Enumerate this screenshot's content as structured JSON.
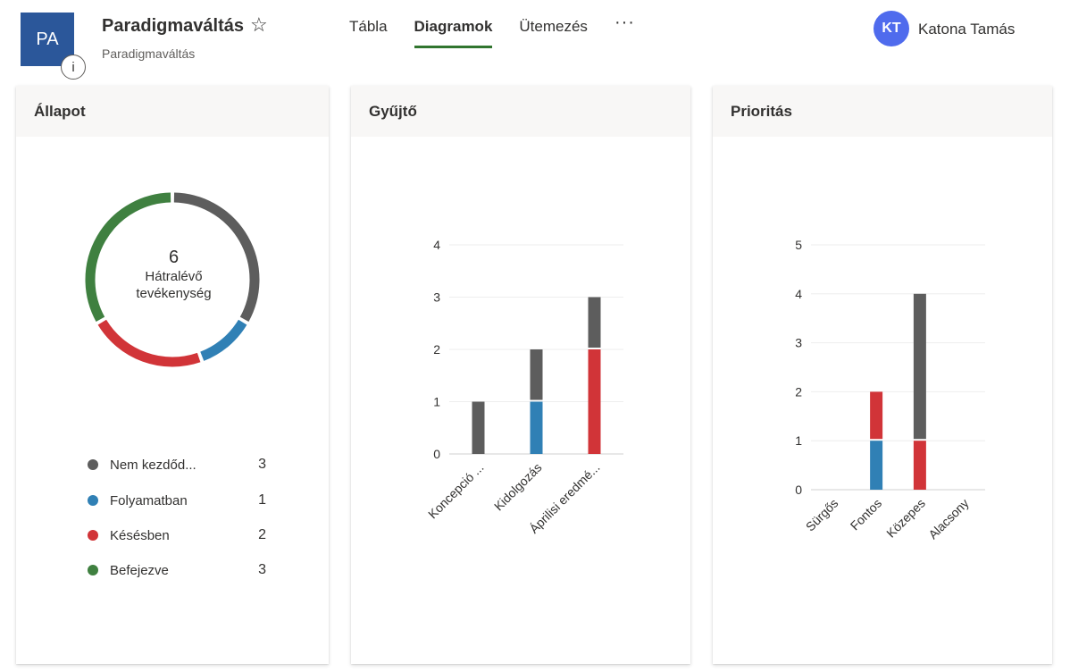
{
  "header": {
    "app_icon_text": "PA",
    "info_icon_text": "i",
    "title": "Paradigmaváltás",
    "subtitle": "Paradigmaváltás",
    "star_icon": "☆"
  },
  "nav": {
    "tabs": [
      {
        "label": "Tábla",
        "active": false
      },
      {
        "label": "Diagramok",
        "active": true
      },
      {
        "label": "Ütemezés",
        "active": false
      }
    ],
    "more_icon": "···"
  },
  "user": {
    "initials": "KT",
    "name": "Katona Tamás",
    "avatar_color": "#4f6bed"
  },
  "colors": {
    "not_started": "#5d5d5d",
    "in_progress": "#3080b5",
    "late": "#d13438",
    "completed": "#3f8040",
    "accent": "#31752f"
  },
  "status_card": {
    "title": "Állapot",
    "center_number": "6",
    "center_line1": "Hátralévő",
    "center_line2": "tevékenység",
    "legend": [
      {
        "label": "Nem kezdőd...",
        "count": "3",
        "color": "#5d5d5d"
      },
      {
        "label": "Folyamatban",
        "count": "1",
        "color": "#3080b5"
      },
      {
        "label": "Késésben",
        "count": "2",
        "color": "#d13438"
      },
      {
        "label": "Befejezve",
        "count": "3",
        "color": "#3f8040"
      }
    ]
  },
  "bucket_card": {
    "title": "Gyűjtő"
  },
  "priority_card": {
    "title": "Prioritás"
  },
  "chart_data": [
    {
      "type": "pie",
      "title": "Állapot",
      "categories": [
        "Nem kezdőd...",
        "Folyamatban",
        "Késésben",
        "Befejezve"
      ],
      "values": [
        3,
        1,
        2,
        3
      ],
      "colors": [
        "#5d5d5d",
        "#3080b5",
        "#d13438",
        "#3f8040"
      ]
    },
    {
      "type": "bar",
      "title": "Gyűjtő",
      "stacked": true,
      "categories": [
        "Koncepció ...",
        "Kidolgozás",
        "Áprilisi eredmé..."
      ],
      "series": [
        {
          "values": [
            0,
            0,
            2
          ],
          "color": "#d13438"
        },
        {
          "values": [
            0,
            1,
            0
          ],
          "color": "#3080b5"
        },
        {
          "values": [
            1,
            1,
            1
          ],
          "color": "#5d5d5d"
        }
      ],
      "ylim": [
        0,
        4
      ],
      "yticks": [
        "0",
        "1",
        "2",
        "3",
        "4"
      ],
      "grid": true
    },
    {
      "type": "bar",
      "title": "Prioritás",
      "stacked": true,
      "categories": [
        "Sürgős",
        "Fontos",
        "Közepes",
        "Alacsony"
      ],
      "series": [
        {
          "values": [
            0,
            0,
            1,
            0
          ],
          "color": "#d13438"
        },
        {
          "values": [
            0,
            1,
            0,
            0
          ],
          "color": "#3080b5"
        },
        {
          "values": [
            0,
            1,
            0,
            0
          ],
          "color": "#d13438"
        },
        {
          "values": [
            0,
            0,
            3,
            0
          ],
          "color": "#5d5d5d"
        }
      ],
      "ylim": [
        0,
        5
      ],
      "yticks": [
        "0",
        "1",
        "2",
        "3",
        "4",
        "5"
      ],
      "grid": true
    }
  ]
}
